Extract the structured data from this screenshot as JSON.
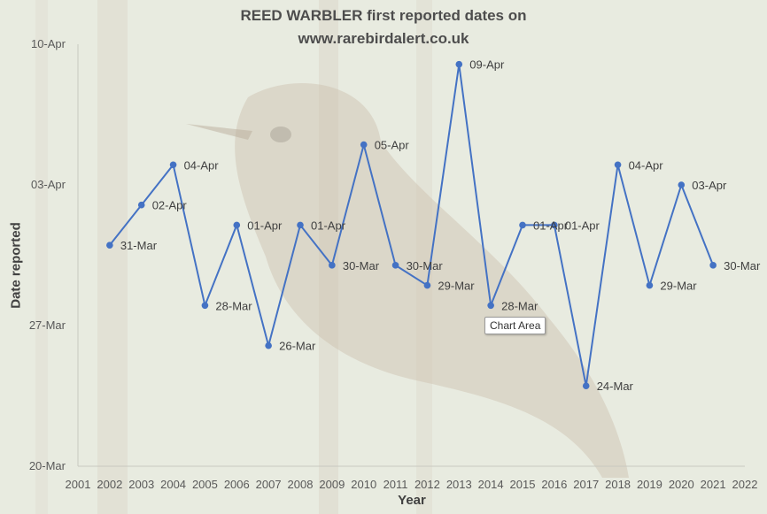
{
  "chart_data": {
    "type": "line",
    "title": "REED WARBLER first reported dates on",
    "subtitle": "www.rarebirdalert.co.uk",
    "xlabel": "Year",
    "ylabel": "Date reported",
    "x_ticks": [
      "2001",
      "2002",
      "2003",
      "2004",
      "2005",
      "2006",
      "2007",
      "2008",
      "2009",
      "2010",
      "2011",
      "2012",
      "2013",
      "2014",
      "2015",
      "2016",
      "2017",
      "2018",
      "2019",
      "2020",
      "2021",
      "2022"
    ],
    "xlim": [
      2001,
      2022
    ],
    "y_ticks": [
      "20-Mar",
      "27-Mar",
      "03-Apr",
      "10-Apr"
    ],
    "ylim": [
      "20-Mar",
      "10-Apr"
    ],
    "series": [
      {
        "color": "#4472c4",
        "x": [
          2002,
          2003,
          2004,
          2005,
          2006,
          2007,
          2008,
          2009,
          2010,
          2011,
          2012,
          2013,
          2014,
          2015,
          2016,
          2017,
          2018,
          2019,
          2020,
          2021
        ],
        "values": [
          "31-Mar",
          "02-Apr",
          "04-Apr",
          "28-Mar",
          "01-Apr",
          "26-Mar",
          "01-Apr",
          "30-Mar",
          "05-Apr",
          "30-Mar",
          "29-Mar",
          "09-Apr",
          "28-Mar",
          "01-Apr",
          "01-Apr",
          "24-Mar",
          "04-Apr",
          "29-Mar",
          "03-Apr",
          "30-Mar"
        ]
      }
    ]
  },
  "tooltip": "Chart Area"
}
